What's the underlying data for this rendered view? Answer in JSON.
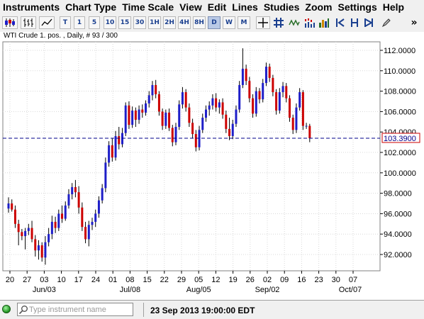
{
  "menu": [
    "Instruments",
    "Chart Type",
    "Time Scale",
    "View",
    "Edit",
    "Lines",
    "Studies",
    "Zoom",
    "Settings",
    "Help"
  ],
  "toolbar": {
    "timeframes": [
      "T",
      "1",
      "5",
      "10",
      "15",
      "30",
      "1H",
      "2H",
      "4H",
      "8H",
      "D",
      "W",
      "M"
    ],
    "active_timeframe": "D"
  },
  "chart": {
    "header": "WTI Crude 1. pos. , Daily, # 93 / 300",
    "current_price_label": "103.3900",
    "colors": {
      "up": "#1e1ec8",
      "down": "#cc0000",
      "wick": "#000000",
      "grid": "#d8d8d8",
      "price_line": "#00008b"
    }
  },
  "chart_data": {
    "type": "candlestick",
    "y_ticks": [
      "92.0000",
      "94.0000",
      "96.0000",
      "98.0000",
      "100.0000",
      "102.0000",
      "104.0000",
      "106.0000",
      "108.0000",
      "110.0000",
      "112.0000"
    ],
    "x_day_labels": [
      "20",
      "27",
      "03",
      "10",
      "17",
      "24",
      "01",
      "08",
      "15",
      "22",
      "29",
      "05",
      "12",
      "19",
      "26",
      "02",
      "09",
      "16",
      "23",
      "30",
      "07"
    ],
    "x_month_labels": [
      "Jun/03",
      "Jul/08",
      "Aug/05",
      "Sep/02",
      "Oct/07"
    ],
    "current_price": 103.39,
    "candles": [
      {
        "o": 96.5,
        "h": 97.6,
        "l": 96.1,
        "c": 97.0
      },
      {
        "o": 97.0,
        "h": 97.4,
        "l": 96.2,
        "c": 96.4
      },
      {
        "o": 96.4,
        "h": 96.8,
        "l": 94.6,
        "c": 95.0
      },
      {
        "o": 95.0,
        "h": 95.4,
        "l": 92.9,
        "c": 94.2
      },
      {
        "o": 94.2,
        "h": 94.5,
        "l": 93.4,
        "c": 93.8
      },
      {
        "o": 93.8,
        "h": 94.6,
        "l": 92.5,
        "c": 94.3
      },
      {
        "o": 94.3,
        "h": 95.0,
        "l": 93.9,
        "c": 94.6
      },
      {
        "o": 94.6,
        "h": 95.3,
        "l": 93.2,
        "c": 93.5
      },
      {
        "o": 93.5,
        "h": 93.9,
        "l": 91.8,
        "c": 92.4
      },
      {
        "o": 92.4,
        "h": 93.4,
        "l": 91.5,
        "c": 92.9
      },
      {
        "o": 92.9,
        "h": 93.2,
        "l": 91.3,
        "c": 91.7
      },
      {
        "o": 91.7,
        "h": 93.8,
        "l": 91.0,
        "c": 93.2
      },
      {
        "o": 93.2,
        "h": 94.6,
        "l": 92.8,
        "c": 94.0
      },
      {
        "o": 94.0,
        "h": 95.8,
        "l": 93.5,
        "c": 95.2
      },
      {
        "o": 95.2,
        "h": 95.7,
        "l": 94.1,
        "c": 94.6
      },
      {
        "o": 94.6,
        "h": 96.4,
        "l": 94.3,
        "c": 96.0
      },
      {
        "o": 96.0,
        "h": 96.8,
        "l": 95.1,
        "c": 95.5
      },
      {
        "o": 95.5,
        "h": 97.2,
        "l": 95.3,
        "c": 96.8
      },
      {
        "o": 96.8,
        "h": 98.4,
        "l": 96.5,
        "c": 97.9
      },
      {
        "o": 97.9,
        "h": 99.0,
        "l": 97.4,
        "c": 98.6
      },
      {
        "o": 98.6,
        "h": 99.3,
        "l": 97.6,
        "c": 98.1
      },
      {
        "o": 98.1,
        "h": 98.7,
        "l": 96.0,
        "c": 96.6
      },
      {
        "o": 96.6,
        "h": 97.1,
        "l": 94.3,
        "c": 94.7
      },
      {
        "o": 94.7,
        "h": 95.2,
        "l": 93.1,
        "c": 93.5
      },
      {
        "o": 93.5,
        "h": 95.3,
        "l": 92.8,
        "c": 94.9
      },
      {
        "o": 94.9,
        "h": 95.6,
        "l": 94.4,
        "c": 95.2
      },
      {
        "o": 95.2,
        "h": 96.4,
        "l": 94.7,
        "c": 96.0
      },
      {
        "o": 96.0,
        "h": 97.7,
        "l": 95.6,
        "c": 97.3
      },
      {
        "o": 97.3,
        "h": 98.9,
        "l": 97.0,
        "c": 98.5
      },
      {
        "o": 98.5,
        "h": 101.5,
        "l": 98.1,
        "c": 101.0
      },
      {
        "o": 101.0,
        "h": 103.1,
        "l": 100.6,
        "c": 102.7
      },
      {
        "o": 102.7,
        "h": 103.4,
        "l": 101.1,
        "c": 101.5
      },
      {
        "o": 101.5,
        "h": 104.1,
        "l": 101.2,
        "c": 103.6
      },
      {
        "o": 103.6,
        "h": 104.5,
        "l": 102.3,
        "c": 102.8
      },
      {
        "o": 102.8,
        "h": 104.4,
        "l": 102.5,
        "c": 103.9
      },
      {
        "o": 103.9,
        "h": 106.9,
        "l": 103.6,
        "c": 106.6
      },
      {
        "o": 106.6,
        "h": 107.0,
        "l": 104.3,
        "c": 104.7
      },
      {
        "o": 104.7,
        "h": 106.5,
        "l": 104.4,
        "c": 106.1
      },
      {
        "o": 106.1,
        "h": 106.4,
        "l": 104.5,
        "c": 105.2
      },
      {
        "o": 105.2,
        "h": 106.6,
        "l": 104.8,
        "c": 106.2
      },
      {
        "o": 106.2,
        "h": 106.7,
        "l": 105.4,
        "c": 105.9
      },
      {
        "o": 105.9,
        "h": 107.1,
        "l": 105.6,
        "c": 106.8
      },
      {
        "o": 106.8,
        "h": 108.0,
        "l": 106.4,
        "c": 107.6
      },
      {
        "o": 107.6,
        "h": 109.0,
        "l": 107.1,
        "c": 108.6
      },
      {
        "o": 108.6,
        "h": 109.1,
        "l": 107.3,
        "c": 107.7
      },
      {
        "o": 107.7,
        "h": 108.0,
        "l": 105.6,
        "c": 106.0
      },
      {
        "o": 106.0,
        "h": 106.3,
        "l": 104.2,
        "c": 104.6
      },
      {
        "o": 104.6,
        "h": 106.2,
        "l": 104.3,
        "c": 105.9
      },
      {
        "o": 105.9,
        "h": 106.3,
        "l": 104.1,
        "c": 104.4
      },
      {
        "o": 104.4,
        "h": 104.7,
        "l": 102.6,
        "c": 103.0
      },
      {
        "o": 103.0,
        "h": 104.9,
        "l": 102.7,
        "c": 104.5
      },
      {
        "o": 104.5,
        "h": 107.1,
        "l": 104.2,
        "c": 106.7
      },
      {
        "o": 106.7,
        "h": 108.4,
        "l": 106.3,
        "c": 107.9
      },
      {
        "o": 107.9,
        "h": 108.2,
        "l": 106.0,
        "c": 106.4
      },
      {
        "o": 106.4,
        "h": 106.8,
        "l": 104.5,
        "c": 104.9
      },
      {
        "o": 104.9,
        "h": 105.3,
        "l": 103.4,
        "c": 103.8
      },
      {
        "o": 103.8,
        "h": 104.2,
        "l": 102.1,
        "c": 102.5
      },
      {
        "o": 102.5,
        "h": 104.6,
        "l": 102.2,
        "c": 104.2
      },
      {
        "o": 104.2,
        "h": 105.8,
        "l": 103.9,
        "c": 105.4
      },
      {
        "o": 105.4,
        "h": 106.6,
        "l": 105.0,
        "c": 106.2
      },
      {
        "o": 106.2,
        "h": 107.0,
        "l": 105.6,
        "c": 106.6
      },
      {
        "o": 106.6,
        "h": 107.7,
        "l": 106.2,
        "c": 107.3
      },
      {
        "o": 107.3,
        "h": 107.8,
        "l": 106.0,
        "c": 106.4
      },
      {
        "o": 106.4,
        "h": 107.2,
        "l": 105.8,
        "c": 106.9
      },
      {
        "o": 106.9,
        "h": 107.3,
        "l": 105.3,
        "c": 105.7
      },
      {
        "o": 105.7,
        "h": 106.1,
        "l": 103.9,
        "c": 104.3
      },
      {
        "o": 104.3,
        "h": 105.4,
        "l": 103.2,
        "c": 103.6
      },
      {
        "o": 103.6,
        "h": 105.2,
        "l": 103.3,
        "c": 104.8
      },
      {
        "o": 104.8,
        "h": 106.6,
        "l": 104.5,
        "c": 106.2
      },
      {
        "o": 106.2,
        "h": 109.0,
        "l": 105.9,
        "c": 108.6
      },
      {
        "o": 108.6,
        "h": 112.2,
        "l": 108.3,
        "c": 110.2
      },
      {
        "o": 110.2,
        "h": 110.6,
        "l": 108.6,
        "c": 109.0
      },
      {
        "o": 109.0,
        "h": 109.4,
        "l": 106.9,
        "c": 107.3
      },
      {
        "o": 107.3,
        "h": 107.7,
        "l": 105.4,
        "c": 105.8
      },
      {
        "o": 105.8,
        "h": 108.4,
        "l": 105.5,
        "c": 108.0
      },
      {
        "o": 108.0,
        "h": 108.3,
        "l": 106.8,
        "c": 107.2
      },
      {
        "o": 107.2,
        "h": 109.2,
        "l": 106.9,
        "c": 108.8
      },
      {
        "o": 108.8,
        "h": 110.8,
        "l": 108.5,
        "c": 110.4
      },
      {
        "o": 110.4,
        "h": 110.7,
        "l": 108.9,
        "c": 109.3
      },
      {
        "o": 109.3,
        "h": 109.6,
        "l": 107.5,
        "c": 107.9
      },
      {
        "o": 107.9,
        "h": 108.2,
        "l": 105.7,
        "c": 106.1
      },
      {
        "o": 106.1,
        "h": 108.3,
        "l": 105.8,
        "c": 107.9
      },
      {
        "o": 107.9,
        "h": 108.9,
        "l": 107.4,
        "c": 108.5
      },
      {
        "o": 108.5,
        "h": 108.8,
        "l": 106.9,
        "c": 107.3
      },
      {
        "o": 107.3,
        "h": 107.6,
        "l": 105.0,
        "c": 105.4
      },
      {
        "o": 105.4,
        "h": 105.7,
        "l": 103.8,
        "c": 104.2
      },
      {
        "o": 104.2,
        "h": 106.8,
        "l": 103.9,
        "c": 106.4
      },
      {
        "o": 106.4,
        "h": 108.3,
        "l": 106.1,
        "c": 107.9
      },
      {
        "o": 107.9,
        "h": 108.1,
        "l": 104.2,
        "c": 104.6
      },
      {
        "o": 104.6,
        "h": 104.9,
        "l": 104.3,
        "c": 104.6
      },
      {
        "o": 104.6,
        "h": 104.8,
        "l": 103.0,
        "c": 103.39
      }
    ]
  },
  "status": {
    "search_placeholder": "Type instrument name",
    "datetime": "23 Sep 2013 19:00:00 EDT"
  }
}
